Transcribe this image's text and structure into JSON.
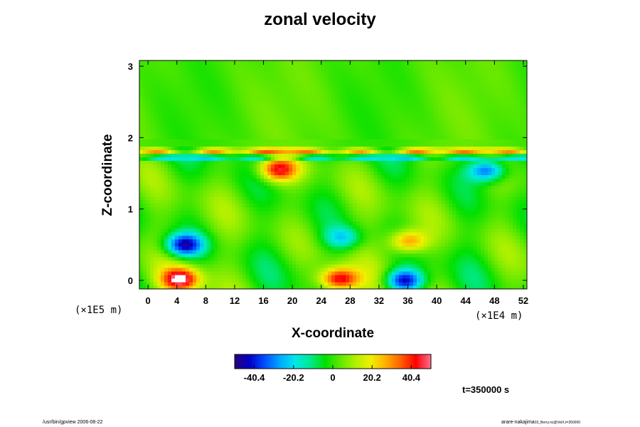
{
  "chart_data": {
    "type": "heatmap",
    "title": "zonal velocity",
    "xlabel": "X-coordinate",
    "ylabel": "Z-coordinate",
    "x_unit_label": "(×1E4 m)",
    "y_unit_label": "(×1E5 m)",
    "x_ticks": [
      "0",
      "4",
      "8",
      "12",
      "16",
      "20",
      "24",
      "28",
      "32",
      "36",
      "40",
      "44",
      "48",
      "52"
    ],
    "y_ticks": [
      "0",
      "1",
      "2",
      "3"
    ],
    "xlim": [
      -1.2,
      52.5
    ],
    "ylim": [
      -0.12,
      3.08
    ],
    "colorbar": {
      "ticks": [
        "-40.4",
        "-20.2",
        "0",
        "20.2",
        "40.4"
      ],
      "range": [
        -50.5,
        50.5
      ],
      "colors": [
        "#2a007a",
        "#0000c8",
        "#0050ff",
        "#00a8ff",
        "#00e8e8",
        "#00e890",
        "#00e000",
        "#60e800",
        "#b0f000",
        "#f0f000",
        "#ffb000",
        "#ff6000",
        "#ff0000",
        "#ff7090"
      ]
    },
    "time_label": "t=350000 s",
    "features": [
      {
        "kind": "band",
        "z": 1.82,
        "value": 35
      },
      {
        "kind": "band",
        "z": 1.72,
        "value": -25
      },
      {
        "kind": "blob",
        "x": 4.5,
        "z": 0.02,
        "value": 45
      },
      {
        "kind": "blob",
        "x": 26.5,
        "z": 0.02,
        "value": 45
      },
      {
        "kind": "blob",
        "x": 35.5,
        "z": 0.0,
        "value": -45
      },
      {
        "kind": "blob",
        "x": 5.0,
        "z": 0.5,
        "value": -45
      },
      {
        "kind": "blob",
        "x": 47.0,
        "z": 1.55,
        "value": -40
      },
      {
        "kind": "blob",
        "x": 18.0,
        "z": 1.55,
        "value": 38
      },
      {
        "kind": "blob",
        "x": 36.0,
        "z": 0.55,
        "value": 32
      },
      {
        "kind": "blob",
        "x": 27.0,
        "z": 0.6,
        "value": -22
      }
    ]
  },
  "footer": {
    "left": "/usr/bin/gpview 2006-08-22",
    "right": "arare-nakajima",
    "right_sub": "03_Berry.nc@VelX,t=350000"
  }
}
